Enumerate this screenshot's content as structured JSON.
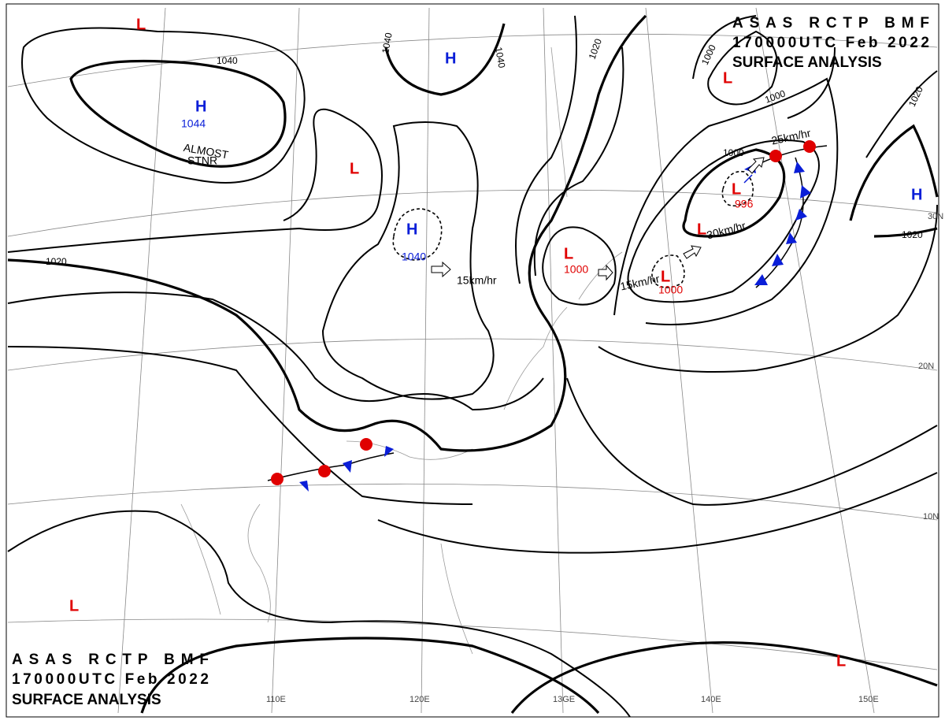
{
  "header": {
    "lines": [
      "ASAS RCTP BMF",
      "170000UTC Feb 2022",
      "SURFACE ANALYSIS"
    ]
  },
  "footer": {
    "lines": [
      "ASAS RCTP BMF",
      "170000UTC Feb 2022",
      "SURFACE ANALYSIS"
    ]
  },
  "centers": [
    {
      "label": "H",
      "value": "1044"
    },
    {
      "label": "H"
    },
    {
      "label": "H",
      "value": "1040"
    },
    {
      "label": "H"
    },
    {
      "label": "L"
    },
    {
      "label": "L"
    },
    {
      "label": "L",
      "value": "1000"
    },
    {
      "label": "L",
      "value": "996"
    },
    {
      "label": "L"
    },
    {
      "label": "L",
      "value": "1000"
    },
    {
      "label": "L"
    },
    {
      "label": "L"
    },
    {
      "label": "L"
    }
  ],
  "isobar_labels": [
    "1040",
    "1040",
    "1040",
    "1020",
    "1000",
    "1000",
    "1020",
    "1000",
    "1020",
    "1020"
  ],
  "motion_speeds": [
    "15km/hr",
    "25km/hr",
    "30km/hr",
    "15km/hr"
  ],
  "stationary_note": [
    "ALMOST",
    "STNR"
  ],
  "latitude_labels": [
    "30N",
    "20N",
    "10N"
  ],
  "longitude_labels": [
    "110E",
    "120E",
    "13GE",
    "140E",
    "150E"
  ]
}
